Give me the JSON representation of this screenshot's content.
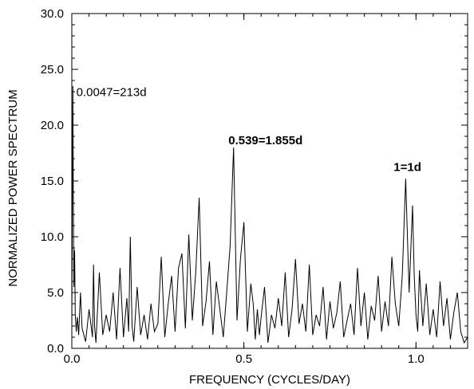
{
  "chart_data": {
    "type": "line",
    "title": "",
    "xlabel": "FREQUENCY (CYCLES/DAY)",
    "ylabel": "NORMALIZED POWER SPECTRUM",
    "xlim": [
      0.0,
      1.15
    ],
    "ylim": [
      0.0,
      30.0
    ],
    "x_ticks": [
      0.0,
      0.5,
      1.0
    ],
    "x_tick_labels": [
      "0.0",
      "0.5",
      "1.0"
    ],
    "x_minor_step": 0.05,
    "y_ticks": [
      0.0,
      5.0,
      10.0,
      15.0,
      20.0,
      25.0,
      30.0
    ],
    "y_tick_labels": [
      "0.0",
      "5.0",
      "10.0",
      "15.0",
      "20.0",
      "25.0",
      "30.0"
    ],
    "y_minor_step": 1.0,
    "grid": false,
    "color": "#000000",
    "series": [
      {
        "x": [
          0.0,
          0.003,
          0.0047,
          0.006,
          0.008,
          0.01,
          0.013,
          0.016,
          0.02,
          0.025,
          0.03,
          0.04,
          0.05,
          0.06,
          0.063,
          0.066,
          0.07,
          0.08,
          0.09,
          0.1,
          0.11,
          0.12,
          0.13,
          0.14,
          0.15,
          0.16,
          0.165,
          0.17,
          0.175,
          0.18,
          0.19,
          0.2,
          0.21,
          0.22,
          0.23,
          0.24,
          0.25,
          0.26,
          0.27,
          0.28,
          0.29,
          0.3,
          0.31,
          0.32,
          0.33,
          0.34,
          0.35,
          0.36,
          0.37,
          0.38,
          0.39,
          0.4,
          0.41,
          0.42,
          0.43,
          0.44,
          0.45,
          0.46,
          0.47,
          0.48,
          0.49,
          0.5,
          0.51,
          0.52,
          0.527,
          0.533,
          0.539,
          0.545,
          0.55,
          0.56,
          0.57,
          0.58,
          0.59,
          0.6,
          0.61,
          0.62,
          0.63,
          0.64,
          0.65,
          0.66,
          0.67,
          0.68,
          0.69,
          0.7,
          0.71,
          0.72,
          0.73,
          0.74,
          0.75,
          0.76,
          0.77,
          0.78,
          0.79,
          0.8,
          0.81,
          0.82,
          0.83,
          0.84,
          0.85,
          0.86,
          0.87,
          0.88,
          0.89,
          0.9,
          0.91,
          0.92,
          0.93,
          0.94,
          0.95,
          0.96,
          0.97,
          0.98,
          0.99,
          0.995,
          1.0,
          1.005,
          1.01,
          1.02,
          1.03,
          1.04,
          1.05,
          1.06,
          1.07,
          1.08,
          1.09,
          1.1,
          1.11,
          1.12,
          1.13,
          1.14,
          1.15
        ],
        "y": [
          2.0,
          23.5,
          11.5,
          5.5,
          8.8,
          3.0,
          1.5,
          2.8,
          1.2,
          5.0,
          1.8,
          0.6,
          3.5,
          1.0,
          7.5,
          2.0,
          0.5,
          6.8,
          1.2,
          3.0,
          1.5,
          5.0,
          0.8,
          7.2,
          1.0,
          4.5,
          1.5,
          10.0,
          2.0,
          0.6,
          5.5,
          1.2,
          3.0,
          0.8,
          4.0,
          1.5,
          2.2,
          8.2,
          1.0,
          4.0,
          6.5,
          1.5,
          7.2,
          8.5,
          1.8,
          10.2,
          2.5,
          6.8,
          13.5,
          2.0,
          4.2,
          7.8,
          1.2,
          6.0,
          3.5,
          1.0,
          5.0,
          9.2,
          18.0,
          2.5,
          8.0,
          11.3,
          1.5,
          5.8,
          4.0,
          0.8,
          3.5,
          1.2,
          2.8,
          5.5,
          0.5,
          3.0,
          1.8,
          4.5,
          2.0,
          6.8,
          1.0,
          3.5,
          8.0,
          2.2,
          4.0,
          1.5,
          7.5,
          1.2,
          3.0,
          2.0,
          5.5,
          0.8,
          4.2,
          1.8,
          3.2,
          6.0,
          1.0,
          2.5,
          4.0,
          1.2,
          7.2,
          2.0,
          5.0,
          0.8,
          3.8,
          2.5,
          6.5,
          1.5,
          4.2,
          2.0,
          8.2,
          4.0,
          2.0,
          6.5,
          15.2,
          5.0,
          12.8,
          6.5,
          3.0,
          1.5,
          7.0,
          2.0,
          5.8,
          1.2,
          3.5,
          1.0,
          6.0,
          2.0,
          4.5,
          0.8,
          3.2,
          5.0,
          1.5,
          0.5,
          1.0
        ]
      }
    ],
    "annotations": [
      {
        "text": "0.0047=213d",
        "x": 0.013,
        "y": 22.6,
        "bold": false
      },
      {
        "text": "0.539=1.855d",
        "x": 0.455,
        "y": 18.3,
        "bold": true
      },
      {
        "text": "1=1d",
        "x": 0.935,
        "y": 15.9,
        "bold": true
      }
    ]
  }
}
